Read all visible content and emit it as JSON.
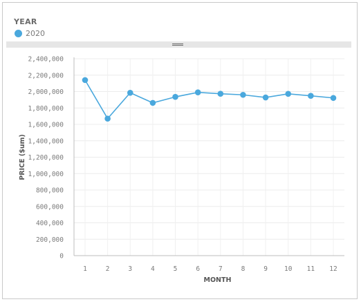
{
  "legend": {
    "title": "YEAR",
    "items": [
      {
        "label": "2020",
        "color": "#4aa8dd"
      }
    ]
  },
  "chart_data": {
    "type": "line",
    "x": [
      "1",
      "2",
      "3",
      "4",
      "5",
      "6",
      "7",
      "8",
      "9",
      "10",
      "11",
      "12"
    ],
    "series": [
      {
        "name": "2020",
        "color": "#4aa8dd",
        "values": [
          2140000,
          1670000,
          1985000,
          1862000,
          1935000,
          1990000,
          1973000,
          1960000,
          1928000,
          1972000,
          1948000,
          1922000
        ]
      }
    ],
    "xlabel": "MONTH",
    "ylabel": "PRICE ($um)",
    "ylim": [
      0,
      2400000
    ],
    "yticks": [
      0,
      200000,
      400000,
      600000,
      800000,
      1000000,
      1200000,
      1400000,
      1600000,
      1800000,
      2000000,
      2200000,
      2400000
    ],
    "ytick_labels": [
      "0",
      "200,000",
      "400,000",
      "600,000",
      "800,000",
      "1,000,000",
      "1,200,000",
      "1,400,000",
      "1,600,000",
      "1,800,000",
      "2,000,000",
      "2,200,000",
      "2,400,000"
    ],
    "grid": true,
    "legend_position": "top-left"
  }
}
